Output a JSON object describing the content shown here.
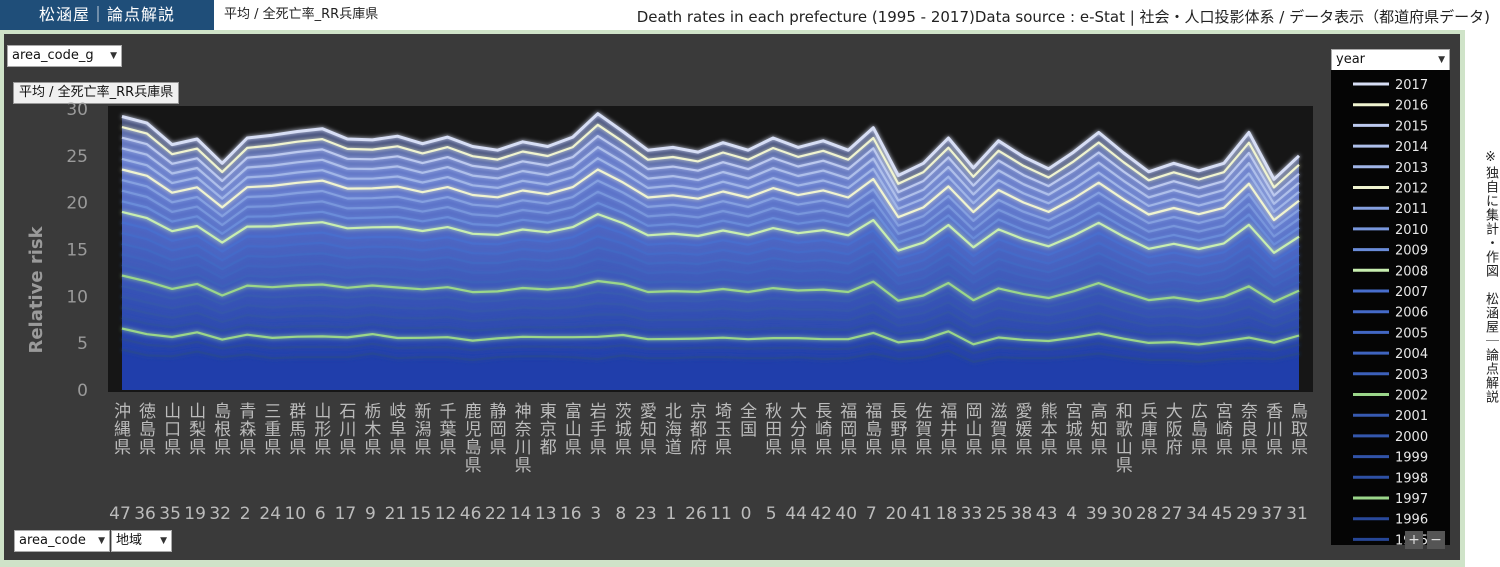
{
  "header": {
    "brand": "松涵屋｜論点解説",
    "breadcrumb": "平均 / 全死亡率_RR兵庫県",
    "title": "Death rates in each prefecture (1995 - 2017)Data source : e-Stat | 社会・人口投影体系 / データ表示（都道府県データ)"
  },
  "side_note": "※独自に集計・作図　松涵屋｜論点解説",
  "controls": {
    "top_left_dropdown": "area_code_g",
    "tooltip": "平均 / 全死亡率_RR兵庫県",
    "bottom_dropdown_1": "area_code",
    "bottom_dropdown_2": "地域",
    "legend_dropdown": "year",
    "zoom_in": "+",
    "zoom_out": "−"
  },
  "colors": {
    "brand_bg": "#1f4e79",
    "panel_bg": "#3a3a3a",
    "plot_bg": "#161616",
    "highlight_green": "#9bd68a",
    "highlight_cream": "#f0f4d0"
  },
  "chart_data": {
    "type": "line",
    "title": "",
    "xlabel": "",
    "ylabel": "Relative risk",
    "ylim": [
      0,
      30
    ],
    "yticks": [
      "0",
      "5",
      "10",
      "15",
      "20",
      "25",
      "30"
    ],
    "stacked": true,
    "grid": false,
    "legend_position": "right",
    "categories": [
      "沖縄県",
      "徳島県",
      "山口県",
      "山梨県",
      "島根県",
      "青森県",
      "三重県",
      "群馬県",
      "山形県",
      "石川県",
      "栃木県",
      "岐阜県",
      "新潟県",
      "千葉県",
      "鹿児島県",
      "静岡県",
      "神奈川県",
      "東京都",
      "富山県",
      "岩手県",
      "茨城県",
      "愛知県",
      "北海道",
      "京都府",
      "埼玉県",
      "全国",
      "秋田県",
      "大分県",
      "長崎県",
      "福岡県",
      "福島県",
      "長野県",
      "佐賀県",
      "福井県",
      "岡山県",
      "滋賀県",
      "愛媛県",
      "熊本県",
      "宮城県",
      "高知県",
      "和歌山県",
      "兵庫県",
      "大阪府",
      "広島県",
      "宮崎県",
      "奈良県",
      "香川県",
      "鳥取県"
    ],
    "area_codes": [
      "47",
      "36",
      "35",
      "19",
      "32",
      "2",
      "24",
      "10",
      "6",
      "17",
      "9",
      "21",
      "15",
      "12",
      "46",
      "22",
      "14",
      "13",
      "16",
      "3",
      "8",
      "23",
      "1",
      "26",
      "11",
      "0",
      "5",
      "44",
      "42",
      "40",
      "7",
      "20",
      "41",
      "18",
      "33",
      "25",
      "38",
      "43",
      "4",
      "39",
      "30",
      "28",
      "27",
      "34",
      "45",
      "29",
      "37",
      "31"
    ],
    "top_boundary": [
      29.2,
      28.5,
      26.2,
      26.8,
      24.2,
      26.9,
      27.2,
      27.6,
      27.9,
      26.8,
      26.7,
      27.1,
      26.3,
      27.0,
      26.0,
      25.6,
      26.5,
      26.0,
      27.0,
      29.5,
      27.6,
      25.6,
      25.9,
      25.4,
      26.4,
      25.6,
      26.9,
      25.9,
      26.6,
      25.6,
      28.0,
      22.9,
      24.2,
      26.9,
      23.7,
      26.6,
      24.9,
      23.6,
      25.4,
      27.5,
      25.3,
      23.3,
      24.2,
      23.4,
      24.2,
      27.5,
      22.5,
      25.0
    ],
    "first_band": [
      4.3,
      3.7,
      3.6,
      4.1,
      3.5,
      3.8,
      3.4,
      3.5,
      3.5,
      3.5,
      3.9,
      3.4,
      3.5,
      3.5,
      3.2,
      3.5,
      3.6,
      3.6,
      3.5,
      3.3,
      3.7,
      3.4,
      3.4,
      3.5,
      3.5,
      3.4,
      3.4,
      3.5,
      3.3,
      3.4,
      3.9,
      3.3,
      3.5,
      4.2,
      3.0,
      3.5,
      3.4,
      3.4,
      3.6,
      3.9,
      3.5,
      3.2,
      3.2,
      3.0,
      3.3,
      3.4,
      3.3,
      3.9
    ],
    "series": [
      {
        "name": "1995"
      },
      {
        "name": "1996"
      },
      {
        "name": "1997"
      },
      {
        "name": "1998"
      },
      {
        "name": "1999"
      },
      {
        "name": "2000"
      },
      {
        "name": "2001"
      },
      {
        "name": "2002"
      },
      {
        "name": "2003"
      },
      {
        "name": "2004"
      },
      {
        "name": "2005"
      },
      {
        "name": "2006"
      },
      {
        "name": "2007"
      },
      {
        "name": "2008"
      },
      {
        "name": "2009"
      },
      {
        "name": "2010"
      },
      {
        "name": "2011"
      },
      {
        "name": "2012"
      },
      {
        "name": "2013"
      },
      {
        "name": "2014"
      },
      {
        "name": "2015"
      },
      {
        "name": "2016"
      },
      {
        "name": "2017"
      }
    ],
    "legend_visible": [
      "2017",
      "2016",
      "2015",
      "2014",
      "2013",
      "2012",
      "2011",
      "2010",
      "2009",
      "2008",
      "2007",
      "2006",
      "2005",
      "2004",
      "2003",
      "2002",
      "2001",
      "2000",
      "1999",
      "1998",
      "1997",
      "1996",
      "1995"
    ],
    "highlight_years": {
      "1997": "#9bd68a",
      "2002": "#9bd68a",
      "2008": "#c8eeb0",
      "2012": "#f0f4d0",
      "2016": "#f0f4d0"
    }
  }
}
